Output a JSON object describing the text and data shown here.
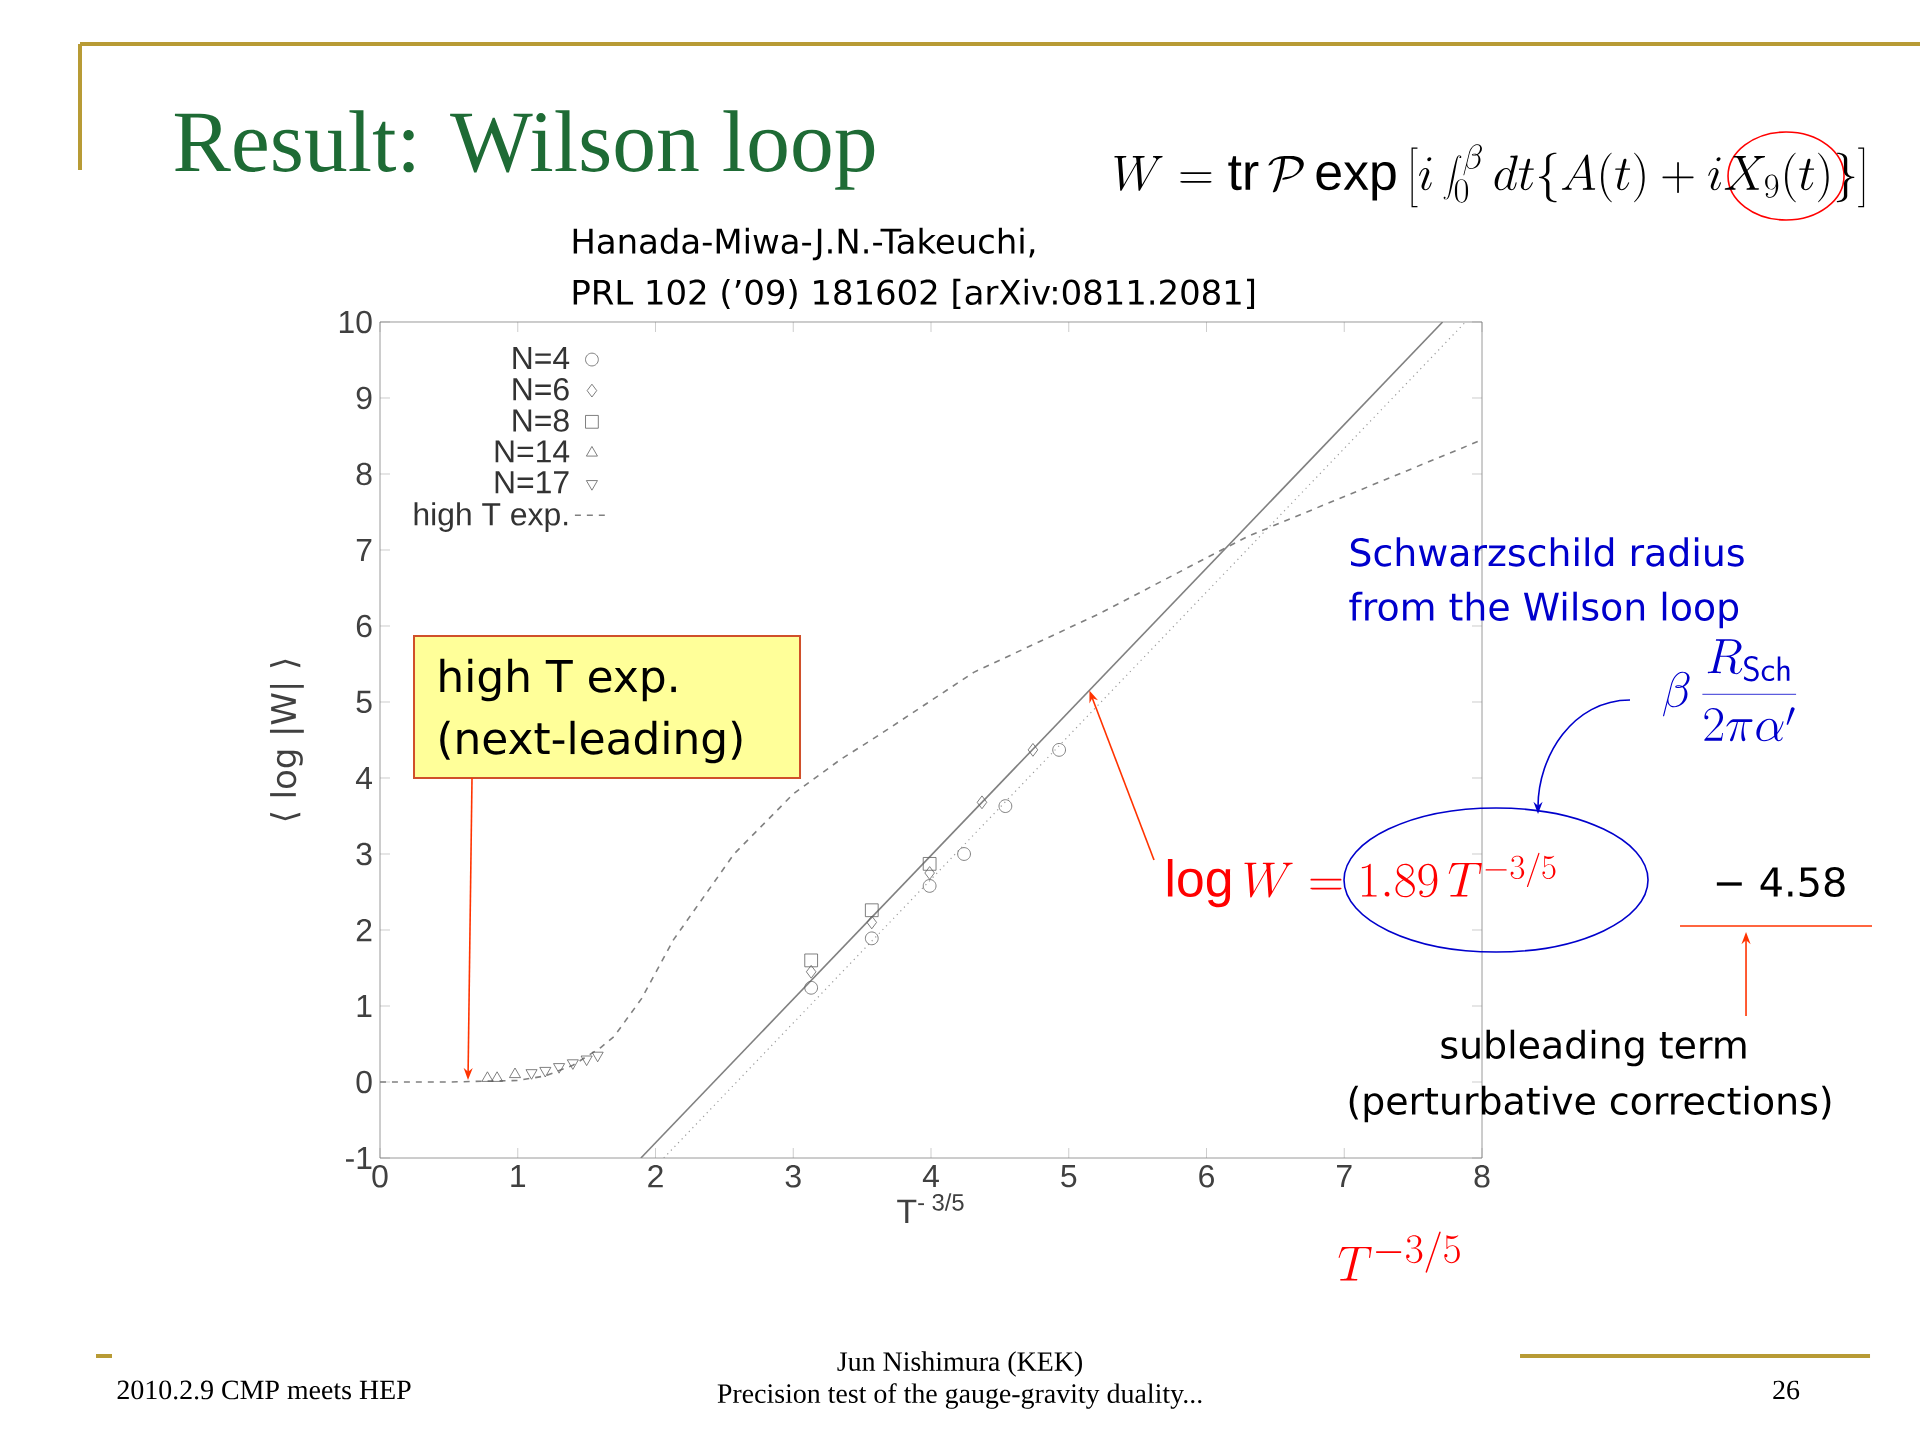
{
  "chart_data": {
    "type": "scatter",
    "title": "Result: Wilson loop",
    "xlabel": "T$^{- 3/5}$",
    "ylabel": "⟨ log |W| ⟩",
    "xlim": [
      0,
      8
    ],
    "ylim": [
      -1,
      10
    ],
    "xticks": [
      0,
      1,
      2,
      3,
      4,
      5,
      6,
      7,
      8
    ],
    "yticks": [
      -1,
      0,
      1,
      2,
      3,
      4,
      5,
      6,
      7,
      8,
      9,
      10
    ],
    "legend": "top left",
    "series": [
      {
        "name": "N=4",
        "color": "#606060",
        "marker": "circle",
        "x": [
          3.13,
          3.57,
          3.99,
          4.24,
          4.54,
          4.93
        ],
        "values": [
          1.24,
          1.89,
          2.58,
          3.0,
          3.63,
          4.37
        ]
      },
      {
        "name": "N=6",
        "color": "#606060",
        "marker": "diamond",
        "x": [
          3.13,
          3.57,
          3.99,
          4.37,
          4.74
        ],
        "values": [
          1.45,
          2.1,
          2.75,
          3.68,
          4.37
        ]
      },
      {
        "name": "N=8",
        "color": "#606060",
        "marker": "square",
        "x": [
          3.13,
          3.57,
          3.99
        ],
        "values": [
          1.6,
          2.26,
          2.87
        ]
      },
      {
        "name": "N=14",
        "color": "#606060",
        "marker": "triangle",
        "x": [
          0.78,
          0.85,
          0.98
        ],
        "values": [
          0.05,
          0.05,
          0.1
        ]
      },
      {
        "name": "N=17",
        "color": "#606060",
        "marker": "triangle down",
        "x": [
          1.1,
          1.2,
          1.3,
          1.4,
          1.5,
          1.58
        ],
        "values": [
          0.12,
          0.15,
          0.2,
          0.25,
          0.3,
          0.35
        ]
      },
      {
        "name": "high T exp.",
        "type": "line",
        "color": "#808080",
        "line_style": "dashed",
        "x": [
          0,
          0.5,
          1.0,
          1.2,
          1.4,
          1.6,
          1.7,
          1.9,
          2.13,
          2.57,
          3.0,
          3.34,
          3.61,
          4.31,
          5.22,
          6.3,
          8
        ],
        "values": [
          0,
          0,
          0.02,
          0.08,
          0.22,
          0.45,
          0.6,
          1.1,
          1.87,
          3.0,
          3.79,
          4.24,
          4.55,
          5.39,
          6.16,
          7.18,
          8.45
        ]
      },
      {
        "type": "line",
        "color": "#808080",
        "line_style": "solid",
        "x": [
          1.894,
          7.714
        ],
        "values": [
          -1,
          10
        ]
      },
      {
        "type": "line",
        "color": "#9a9a9a",
        "line_style": "dotted",
        "x": [
          2.06,
          7.88
        ],
        "values": [
          -1,
          10
        ]
      }
    ],
    "annotations": [
      "Hanada-Miwa-J.N.-Takeuchi,",
      "PRL 102 (’09) 181602 [arXiv:0811.2081]",
      "high T exp.",
      "(next-leading)",
      "Schwarzschild radius",
      "from the Wilson loop",
      "subleading term",
      "(perturbative corrections)",
      "W = \\mathrm{tr}\\,\\mathcal{P}\\exp\\left[i\\int_0^{\\beta} dt\\{A(t) + iX_9(t)\\}\\right]",
      "\\beta\\,\\frac{R_{\\mathsf{Sch}}}{2\\pi\\alpha'}",
      {
        "text": "\\log W = 1.89\\,T^{-3/5}",
        "x": 5.15,
        "y": 5.15
      },
      "− 4.58",
      "T^{-3/5}",
      "2010.2.9 CMP meets HEP",
      "Jun Nishimura (KEK)",
      "Precision test of the gauge-gravity duality...",
      "26"
    ]
  }
}
